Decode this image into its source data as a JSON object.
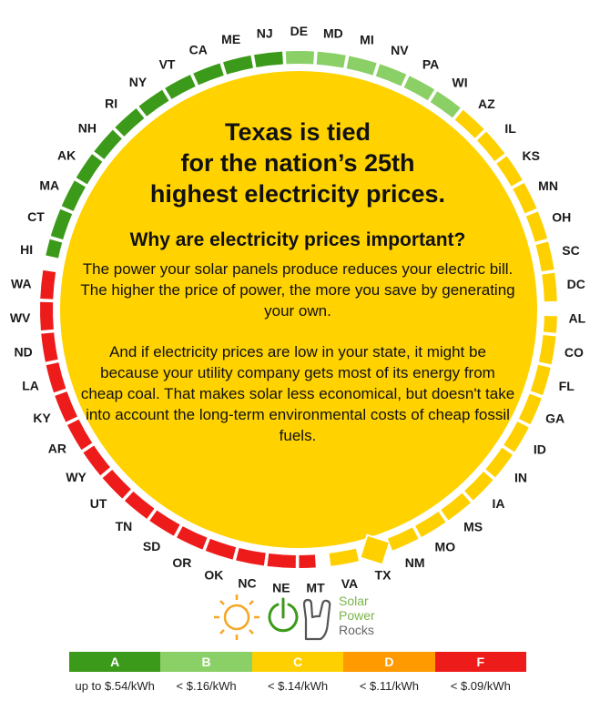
{
  "title_lines": [
    "Texas is tied",
    "for the nation’s 25th",
    "highest electricity prices."
  ],
  "subtitle": "Why are electricity prices important?",
  "paragraph1": "The power your solar panels produce reduces your electric bill. The higher the price of power, the more you save by generating your own.",
  "paragraph2": "And if electricity prices are low in your state, it might be because your utility company gets most of its energy from cheap coal. That makes solar less economical, but doesn't take into account the long-term environmental costs of cheap fossil fuels.",
  "colors": {
    "A": "#3c9a1a",
    "B": "#8bd066",
    "C": "#ffd000",
    "D": "#ff9a00",
    "F": "#ee1b1b",
    "center": "#ffd200"
  },
  "states": [
    {
      "abbr": "NJ",
      "grade": "A"
    },
    {
      "abbr": "ME",
      "grade": "A"
    },
    {
      "abbr": "CA",
      "grade": "A"
    },
    {
      "abbr": "VT",
      "grade": "A"
    },
    {
      "abbr": "NY",
      "grade": "A"
    },
    {
      "abbr": "RI",
      "grade": "A"
    },
    {
      "abbr": "NH",
      "grade": "A"
    },
    {
      "abbr": "AK",
      "grade": "A"
    },
    {
      "abbr": "MA",
      "grade": "A"
    },
    {
      "abbr": "CT",
      "grade": "A"
    },
    {
      "abbr": "HI",
      "grade": "A"
    },
    {
      "abbr": "WA",
      "grade": "F"
    },
    {
      "abbr": "WV",
      "grade": "F"
    },
    {
      "abbr": "ND",
      "grade": "F"
    },
    {
      "abbr": "LA",
      "grade": "F"
    },
    {
      "abbr": "KY",
      "grade": "F"
    },
    {
      "abbr": "AR",
      "grade": "F"
    },
    {
      "abbr": "WY",
      "grade": "F"
    },
    {
      "abbr": "UT",
      "grade": "F"
    },
    {
      "abbr": "TN",
      "grade": "F"
    },
    {
      "abbr": "SD",
      "grade": "F"
    },
    {
      "abbr": "OR",
      "grade": "F"
    },
    {
      "abbr": "OK",
      "grade": "F"
    },
    {
      "abbr": "NC",
      "grade": "F"
    },
    {
      "abbr": "NE",
      "grade": "F"
    },
    {
      "abbr": "MT",
      "grade": "F"
    },
    {
      "abbr": "VA",
      "grade": "C"
    },
    {
      "abbr": "TX",
      "grade": "C",
      "highlight": true
    },
    {
      "abbr": "NM",
      "grade": "C"
    },
    {
      "abbr": "MO",
      "grade": "C"
    },
    {
      "abbr": "MS",
      "grade": "C"
    },
    {
      "abbr": "IA",
      "grade": "C"
    },
    {
      "abbr": "IN",
      "grade": "C"
    },
    {
      "abbr": "ID",
      "grade": "C"
    },
    {
      "abbr": "GA",
      "grade": "C"
    },
    {
      "abbr": "FL",
      "grade": "C"
    },
    {
      "abbr": "CO",
      "grade": "C"
    },
    {
      "abbr": "AL",
      "grade": "C"
    },
    {
      "abbr": "DC",
      "grade": "C"
    },
    {
      "abbr": "SC",
      "grade": "C"
    },
    {
      "abbr": "OH",
      "grade": "C"
    },
    {
      "abbr": "MN",
      "grade": "C"
    },
    {
      "abbr": "KS",
      "grade": "C"
    },
    {
      "abbr": "IL",
      "grade": "C"
    },
    {
      "abbr": "AZ",
      "grade": "C"
    },
    {
      "abbr": "WI",
      "grade": "B"
    },
    {
      "abbr": "PA",
      "grade": "B"
    },
    {
      "abbr": "NV",
      "grade": "B"
    },
    {
      "abbr": "MI",
      "grade": "B"
    },
    {
      "abbr": "MD",
      "grade": "B"
    },
    {
      "abbr": "DE",
      "grade": "B"
    }
  ],
  "logo": {
    "line1": "Solar",
    "line2": "Power",
    "line3": "Rocks"
  },
  "legend": [
    {
      "grade": "A",
      "range": "up to $.54/kWh"
    },
    {
      "grade": "B",
      "range": "< $.16/kWh"
    },
    {
      "grade": "C",
      "range": "< $.14/kWh"
    },
    {
      "grade": "D",
      "range": "< $.11/kWh"
    },
    {
      "grade": "F",
      "range": "< $.09/kWh"
    }
  ]
}
